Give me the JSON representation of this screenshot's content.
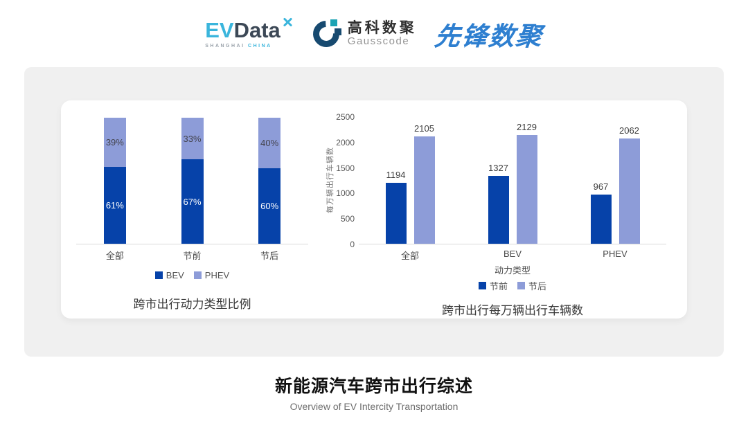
{
  "header": {
    "logos": {
      "evdata": {
        "ev": "EV",
        "data": "Data",
        "sub_left": "SHANGHAI",
        "sub_right": "CHINA"
      },
      "gausscode": {
        "cn": "高科数聚",
        "en": "Gausscode"
      },
      "xianfeng": {
        "text": "先锋数聚"
      }
    }
  },
  "colors": {
    "series_dark_blue": "#0642a9",
    "series_light_blue": "#8d9cd8",
    "card_gray": "#f0f0f0",
    "evdata_cyan": "#3ab5dc",
    "evdata_navy": "#3c4856",
    "gausscode_navy": "#174a70",
    "gausscode_teal": "#1ba3b4",
    "xianfeng_blue": "#2e7fd0",
    "axis_gray": "#d9d9d9"
  },
  "chart_data": [
    {
      "type": "bar",
      "variant": "stacked-percent",
      "title": "跨市出行动力类型比例",
      "categories": [
        "全部",
        "节前",
        "节后"
      ],
      "series": [
        {
          "name": "BEV",
          "values": [
            61,
            67,
            60
          ],
          "color": "#0642a9",
          "label_color": "#ffffff"
        },
        {
          "name": "PHEV",
          "values": [
            39,
            33,
            40
          ],
          "color": "#8d9cd8",
          "label_color": "#44444e"
        }
      ],
      "value_suffix": "%",
      "xlabel": "",
      "ylabel": "",
      "ylim": [
        0,
        100
      ],
      "grid": false,
      "legend_position": "bottom"
    },
    {
      "type": "bar",
      "variant": "grouped",
      "title": "跨市出行每万辆出行车辆数",
      "categories": [
        "全部",
        "BEV",
        "PHEV"
      ],
      "series": [
        {
          "name": "节前",
          "values": [
            1194,
            1327,
            967
          ],
          "color": "#0642a9"
        },
        {
          "name": "节后",
          "values": [
            2105,
            2129,
            2062
          ],
          "color": "#8d9cd8"
        }
      ],
      "xlabel": "动力类型",
      "ylabel": "每万辆出行车辆数",
      "ylim": [
        0,
        2500
      ],
      "ytick_step": 500,
      "grid": false,
      "legend_position": "bottom"
    }
  ],
  "footer": {
    "title": "新能源汽车跨市出行综述",
    "subtitle": "Overview of EV Intercity Transportation"
  }
}
